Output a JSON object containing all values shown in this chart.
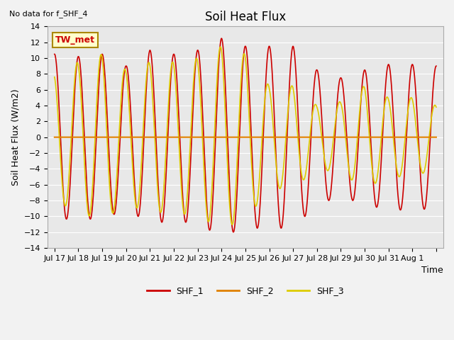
{
  "title": "Soil Heat Flux",
  "no_data_text": "No data for f_SHF_4",
  "ylabel": "Soil Heat Flux (W/m2)",
  "xlabel": "Time",
  "ylim": [
    -14,
    14
  ],
  "yticks": [
    -14,
    -12,
    -10,
    -8,
    -6,
    -4,
    -2,
    0,
    2,
    4,
    6,
    8,
    10,
    12,
    14
  ],
  "bg_color": "#e8e8e8",
  "fig_bg_color": "#f2f2f2",
  "shf1_color": "#cc0000",
  "shf2_color": "#e08000",
  "shf3_color": "#ddcc00",
  "legend_box_label": "TW_met",
  "legend_entries": [
    "SHF_1",
    "SHF_2",
    "SHF_3"
  ],
  "xtick_positions": [
    0,
    1,
    2,
    3,
    4,
    5,
    6,
    7,
    8,
    9,
    10,
    11,
    12,
    13,
    14,
    15,
    16
  ],
  "xtick_labels": [
    "Jul 17",
    "Jul 18",
    "Jul 19",
    "Jul 20",
    "Jul 21",
    "Jul 22",
    "Jul 23",
    "Jul 24",
    "Jul 25",
    "Jul 26",
    "Jul 27",
    "Jul 28",
    "Jul 29",
    "Jul 30",
    "Jul 31",
    "Aug 1",
    ""
  ],
  "shf1_amp_x": [
    0,
    1,
    2,
    3,
    4,
    5,
    6,
    7,
    8,
    9,
    10,
    11,
    12,
    13,
    14,
    15,
    16
  ],
  "shf1_amp_y": [
    10.5,
    10.2,
    10.5,
    9.0,
    11.0,
    10.5,
    11.0,
    12.5,
    11.5,
    11.5,
    11.5,
    8.5,
    7.5,
    8.5,
    9.2,
    9.2,
    9.0
  ],
  "shf3_amp_x": [
    0,
    1,
    2,
    3,
    4,
    5,
    6,
    7,
    8,
    9,
    10,
    11,
    12,
    13,
    14,
    15,
    16
  ],
  "shf3_amp_y": [
    8.0,
    9.5,
    10.5,
    8.5,
    9.5,
    9.5,
    10.0,
    11.5,
    10.5,
    6.5,
    6.5,
    4.0,
    4.5,
    6.5,
    5.0,
    5.0,
    4.0
  ],
  "shf1_phase": 0.75,
  "shf3_phase": 0.7,
  "n_points": 1536,
  "x_total_days": 16
}
